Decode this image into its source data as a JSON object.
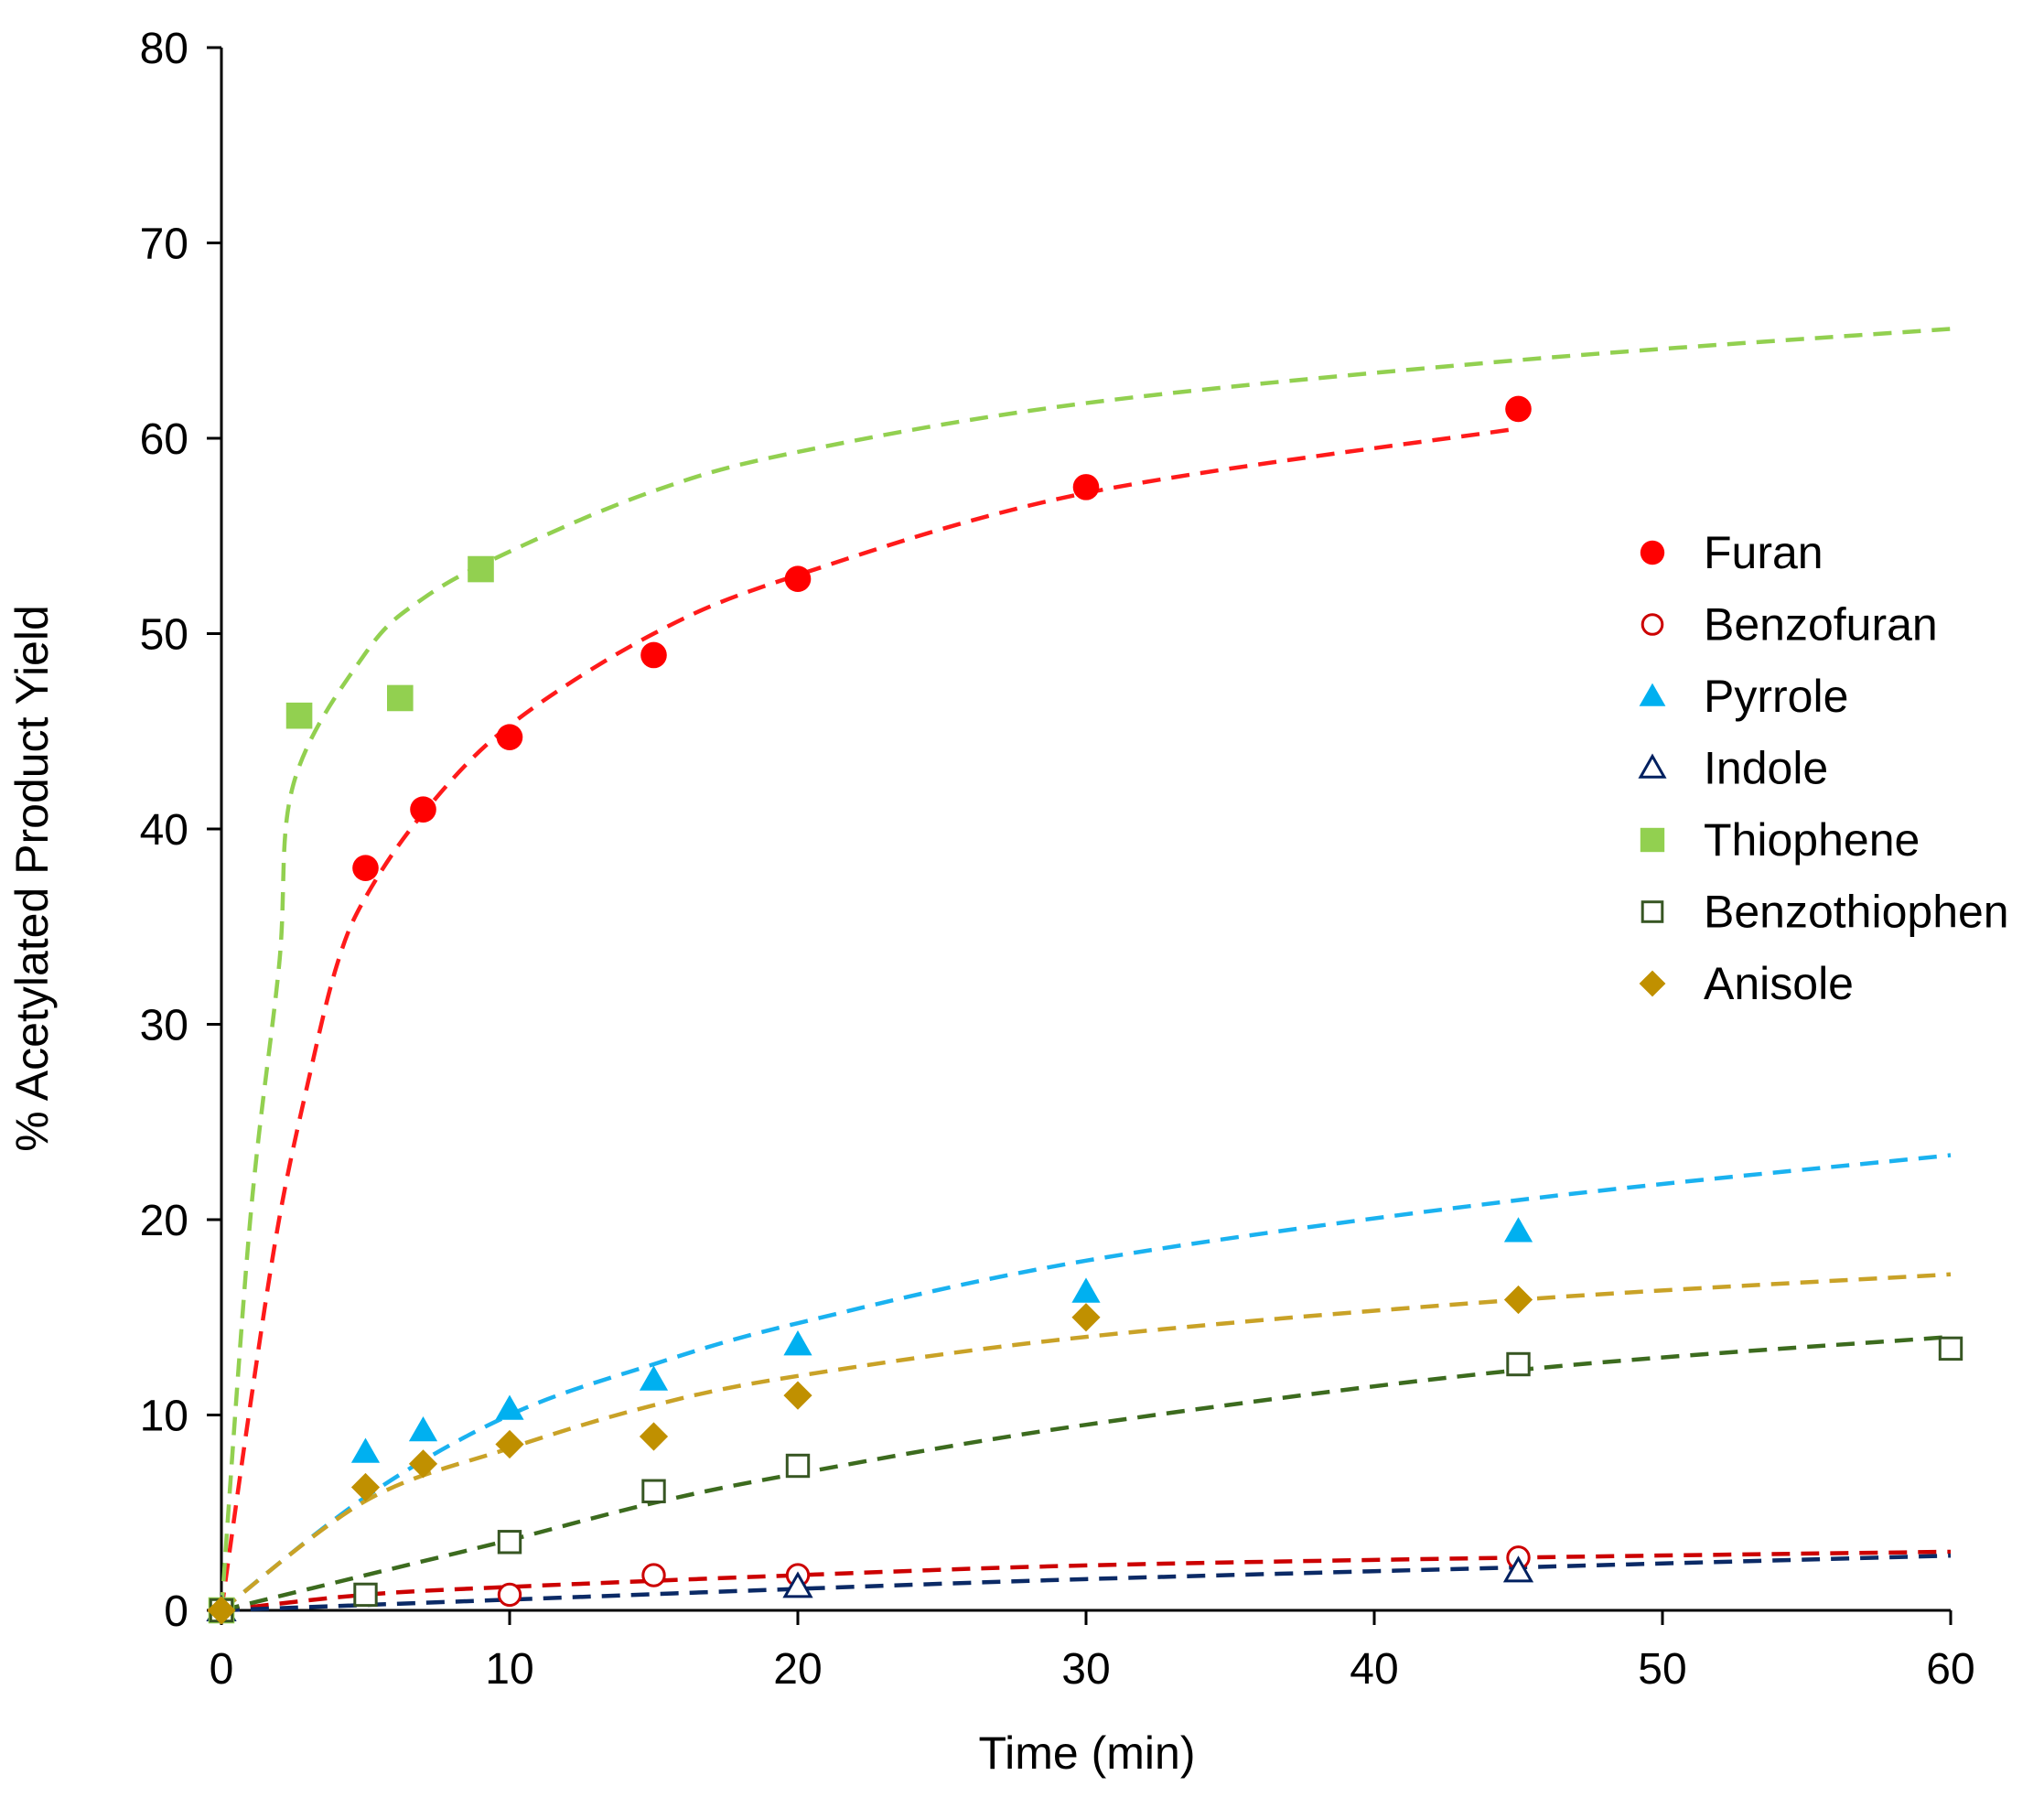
{
  "chart_data": {
    "type": "scatter",
    "title": "",
    "xlabel": "Time (min)",
    "ylabel": "% Acetylated Product Yield",
    "xlim": [
      0,
      60
    ],
    "ylim": [
      0,
      80
    ],
    "xticks": [
      0,
      10,
      20,
      30,
      40,
      50,
      60
    ],
    "yticks": [
      0,
      10,
      20,
      30,
      40,
      50,
      60,
      70,
      80
    ],
    "grid": false,
    "legend_position": "right",
    "series": [
      {
        "name": "Furan",
        "marker": "circle-filled",
        "color": "#ff0000",
        "trend_color": "#ff1a1a",
        "points": [
          [
            0,
            0
          ],
          [
            5,
            38
          ],
          [
            7,
            41
          ],
          [
            10,
            44.7
          ],
          [
            15,
            48.9
          ],
          [
            20,
            52.8
          ],
          [
            30,
            57.5
          ],
          [
            45,
            61.5
          ]
        ],
        "trendline": [
          [
            0,
            0
          ],
          [
            1,
            10.5
          ],
          [
            2,
            20
          ],
          [
            3,
            27
          ],
          [
            4,
            33
          ],
          [
            5,
            36.5
          ],
          [
            7,
            40.8
          ],
          [
            10,
            45.3
          ],
          [
            15,
            50
          ],
          [
            20,
            53
          ],
          [
            30,
            57.2
          ],
          [
            45,
            60.5
          ]
        ]
      },
      {
        "name": "Benzofuran",
        "marker": "circle-open",
        "color": "#cc0000",
        "trend_color": "#cc0000",
        "points": [
          [
            0,
            0
          ],
          [
            10,
            0.8
          ],
          [
            15,
            1.8
          ],
          [
            20,
            1.8
          ],
          [
            45,
            2.7
          ]
        ],
        "trendline": [
          [
            0,
            0
          ],
          [
            5,
            0.8
          ],
          [
            10,
            1.2
          ],
          [
            20,
            1.8
          ],
          [
            30,
            2.3
          ],
          [
            45,
            2.7
          ],
          [
            60,
            3
          ]
        ]
      },
      {
        "name": "Pyrrole",
        "marker": "triangle-filled",
        "color": "#00b0f0",
        "trend_color": "#1ab2f0",
        "points": [
          [
            0,
            0
          ],
          [
            5,
            8.1
          ],
          [
            7,
            9.2
          ],
          [
            10,
            10.3
          ],
          [
            15,
            11.8
          ],
          [
            20,
            13.6
          ],
          [
            30,
            16.3
          ],
          [
            45,
            19.4
          ]
        ],
        "trendline": [
          [
            0,
            0
          ],
          [
            5,
            5.8
          ],
          [
            10,
            10
          ],
          [
            15,
            12.6
          ],
          [
            20,
            14.7
          ],
          [
            30,
            17.9
          ],
          [
            45,
            21
          ],
          [
            60,
            23.3
          ]
        ]
      },
      {
        "name": "Indole",
        "marker": "triangle-open",
        "color": "#002060",
        "trend_color": "#0b2a66",
        "points": [
          [
            0,
            0
          ],
          [
            20,
            1.2
          ],
          [
            45,
            2
          ]
        ],
        "trendline": [
          [
            0,
            0
          ],
          [
            10,
            0.55
          ],
          [
            20,
            1.1
          ],
          [
            30,
            1.6
          ],
          [
            45,
            2.2
          ],
          [
            60,
            2.8
          ]
        ]
      },
      {
        "name": "Thiophene",
        "marker": "square-filled",
        "color": "#92d050",
        "trend_color": "#92d050",
        "points": [
          [
            0,
            0
          ],
          [
            2.7,
            45.8
          ],
          [
            6.2,
            46.7
          ],
          [
            9,
            53.3
          ]
        ],
        "trendline": [
          [
            0,
            0
          ],
          [
            1,
            20
          ],
          [
            2,
            33
          ],
          [
            2.5,
            42.3
          ],
          [
            5,
            49
          ],
          [
            7,
            51.8
          ],
          [
            10,
            54.2
          ],
          [
            15,
            57.3
          ],
          [
            20,
            59.3
          ],
          [
            30,
            61.8
          ],
          [
            45,
            64
          ],
          [
            60,
            65.6
          ]
        ]
      },
      {
        "name": "Benzothiophene",
        "legend_label": "Benzothiophen",
        "marker": "square-open",
        "color": "#375623",
        "trend_color": "#3c6b1e",
        "points": [
          [
            0,
            0
          ],
          [
            5,
            0.8
          ],
          [
            10,
            3.5
          ],
          [
            15,
            6.1
          ],
          [
            20,
            7.4
          ],
          [
            45,
            12.6
          ],
          [
            60,
            13.4
          ]
        ],
        "trendline": [
          [
            0,
            0
          ],
          [
            5,
            1.8
          ],
          [
            10,
            3.6
          ],
          [
            15,
            5.5
          ],
          [
            20,
            7
          ],
          [
            30,
            9.5
          ],
          [
            45,
            12.3
          ],
          [
            60,
            14
          ]
        ]
      },
      {
        "name": "Anisole",
        "marker": "diamond-filled",
        "color": "#c09000",
        "trend_color": "#c9a227",
        "points": [
          [
            0,
            0
          ],
          [
            5,
            6.3
          ],
          [
            7,
            7.5
          ],
          [
            10,
            8.5
          ],
          [
            15,
            8.9
          ],
          [
            20,
            11
          ],
          [
            30,
            15
          ],
          [
            45,
            15.9
          ]
        ],
        "trendline": [
          [
            0,
            0
          ],
          [
            5,
            5.6
          ],
          [
            10,
            8.3
          ],
          [
            15,
            10.5
          ],
          [
            20,
            12
          ],
          [
            30,
            14
          ],
          [
            45,
            15.9
          ],
          [
            60,
            17.2
          ]
        ]
      }
    ]
  }
}
